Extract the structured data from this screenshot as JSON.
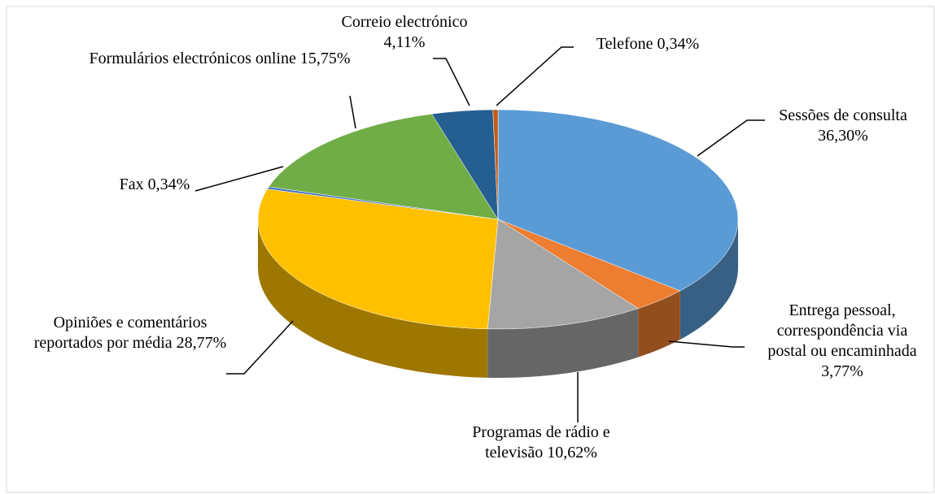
{
  "chart_data": {
    "type": "pie",
    "categories": [
      "Sessões de consulta",
      "Entrega pessoal, correspondência via postal ou encaminhada",
      "Programas de rádio e televisão",
      "Opiniões e comentários reportados por média",
      "Fax",
      "Formulários electrónicos online",
      "Correio electrónico",
      "Telefone"
    ],
    "values": [
      36.3,
      3.77,
      10.62,
      28.77,
      0.34,
      15.75,
      4.11,
      0.34
    ],
    "value_labels": [
      "36,30%",
      "3,77%",
      "10,62%",
      "28,77%",
      "0,34%",
      "15,75%",
      "4,11%",
      "0,34%"
    ],
    "colors": [
      "#5b9bd5",
      "#ed7d31",
      "#a5a5a5",
      "#ffc000",
      "#4472c4",
      "#70ad47",
      "#255e91",
      "#c55a11"
    ]
  }
}
